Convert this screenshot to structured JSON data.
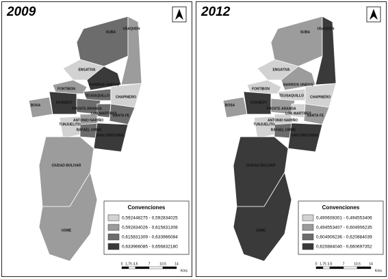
{
  "maps": [
    {
      "title": "2009",
      "districts": [
        "SUBA",
        "USAQUEN",
        "ENGATIVA",
        "FONTIBON",
        "BARRIOS UNIDOS",
        "TEUSAQUILLO",
        "CHAPINERO",
        "BOSA",
        "KENNEDY",
        "PUENTE ARANDA",
        "LOS MARTIRES",
        "SANTA FE",
        "ANTONIO NARIÑO",
        "TUNJUELITO",
        "RAFAEL URIBE",
        "SAN CRISTOBAL",
        "CIUDAD BOLIVAR",
        "USME"
      ],
      "legend": {
        "title": "Convenciones",
        "classes": [
          "0,592448275 - 0,592834025",
          "0,592834026 - 0,615831308",
          "0,615831309 - 0,633966084",
          "0,633966085 - 0,656832180"
        ]
      },
      "scale": {
        "ticks": [
          "0",
          "1,75",
          "3,5",
          "7",
          "10,5",
          "14"
        ],
        "unit": "Kms"
      }
    },
    {
      "title": "2012",
      "districts": [
        "SUBA",
        "USAQUEN",
        "ENGATIVA",
        "FONTIBON",
        "BARRIOS UNIDOS",
        "TEUSAQUILLO",
        "CHAPINERO",
        "BOSA",
        "KENNEDY",
        "PUENTE ARANDA",
        "LOS MARTIRES",
        "SANTA FE",
        "ANTONIO NARIÑO",
        "TUNJUELITO",
        "RAFAEL URIBE",
        "SAN CRISTOBAL",
        "CIUDAD BOLIVAR",
        "USME"
      ],
      "legend": {
        "title": "Convenciones",
        "classes": [
          "0,490608301 - 0,494553406",
          "0,494553407 - 0,604906235",
          "0,604906236 - 0,620884039",
          "0,620884040 - 0,660697352"
        ]
      },
      "scale": {
        "ticks": [
          "0",
          "1,75",
          "3,5",
          "7",
          "10,5",
          "14"
        ],
        "unit": "Kms"
      }
    }
  ]
}
